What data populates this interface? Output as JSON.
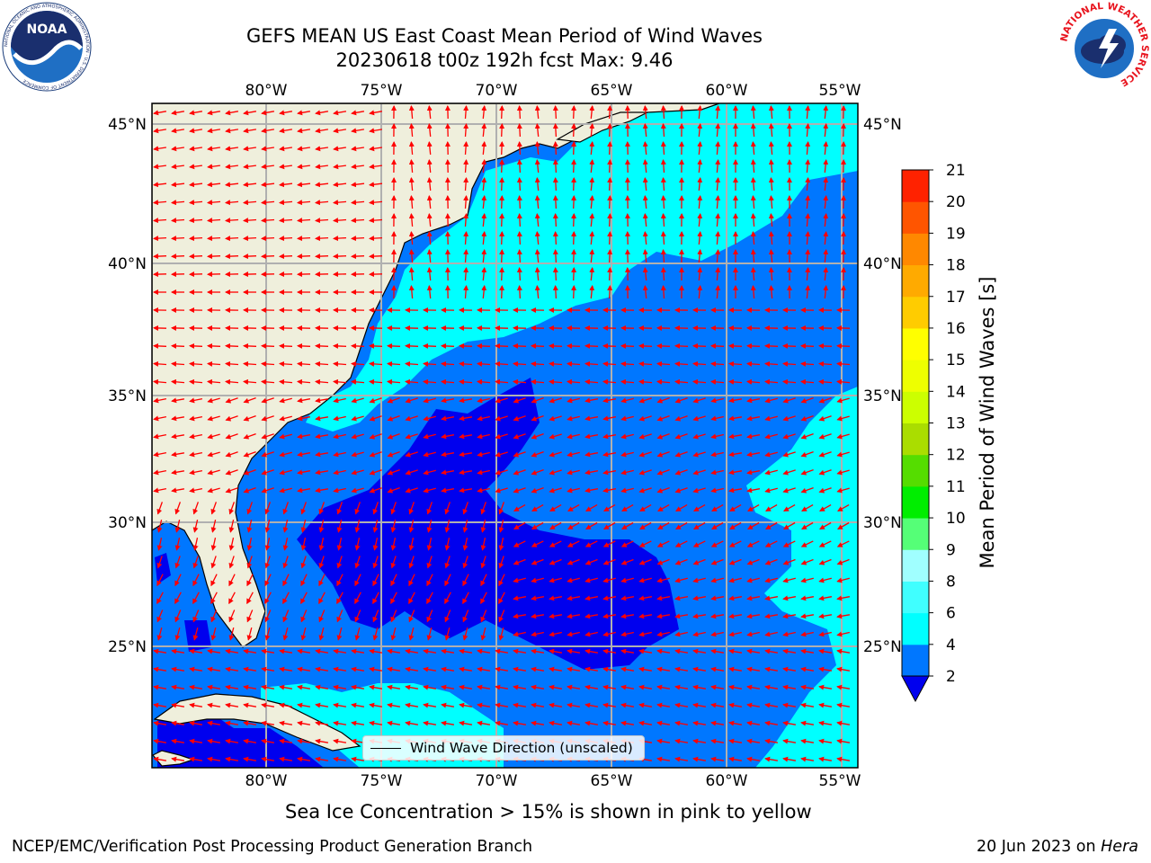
{
  "header": {
    "title_line1": "GEFS MEAN US East Coast Mean Period of Wind Waves",
    "title_line2": "20230618 t00z 192h fcst   Max: 9.46"
  },
  "logos": {
    "left": {
      "name": "noaa-logo",
      "text": "NOAA",
      "ring_text": "NATIONAL OCEANIC AND ATMOSPHERIC ADMINISTRATION · U.S. DEPARTMENT OF COMMERCE"
    },
    "right": {
      "name": "nws-logo",
      "ring_text": "NATIONAL WEATHER SERVICE"
    }
  },
  "map": {
    "lon_labels": [
      "80°W",
      "75°W",
      "70°W",
      "65°W",
      "60°W",
      "55°W"
    ],
    "lat_labels": [
      "45°N",
      "40°N",
      "35°N",
      "30°N",
      "25°N"
    ],
    "lon_range": [
      -85,
      -54.3
    ],
    "lat_range": [
      20.5,
      46
    ],
    "land_color": "#efefdc",
    "grid_color": "#b0b0b0",
    "arrow_color": "#ff0000"
  },
  "legend": {
    "label": "Wind Wave Direction (unscaled)"
  },
  "colorbar": {
    "label": "Mean Period of Wind Waves [s]",
    "ticks": [
      "2",
      "4",
      "6",
      "8",
      "9",
      "10",
      "11",
      "12",
      "13",
      "14",
      "15",
      "16",
      "17",
      "18",
      "19",
      "20",
      "21"
    ],
    "colors": [
      "#0077ff",
      "#00ffff",
      "#40ffff",
      "#a0ffff",
      "#55ff77",
      "#00ee00",
      "#55dd00",
      "#aadd00",
      "#ccff00",
      "#eeff00",
      "#ffff00",
      "#ffcc00",
      "#ffaa00",
      "#ff8800",
      "#ff5500",
      "#ff2200"
    ],
    "under_color": "#0000ee"
  },
  "footer": {
    "subtitle": "Sea Ice Concentration > 15% is shown in pink to yellow",
    "credit": "NCEP/EMC/Verification Post Processing Product Generation Branch",
    "date_prefix": "20 Jun 2023 on ",
    "date_host": "Hera"
  }
}
